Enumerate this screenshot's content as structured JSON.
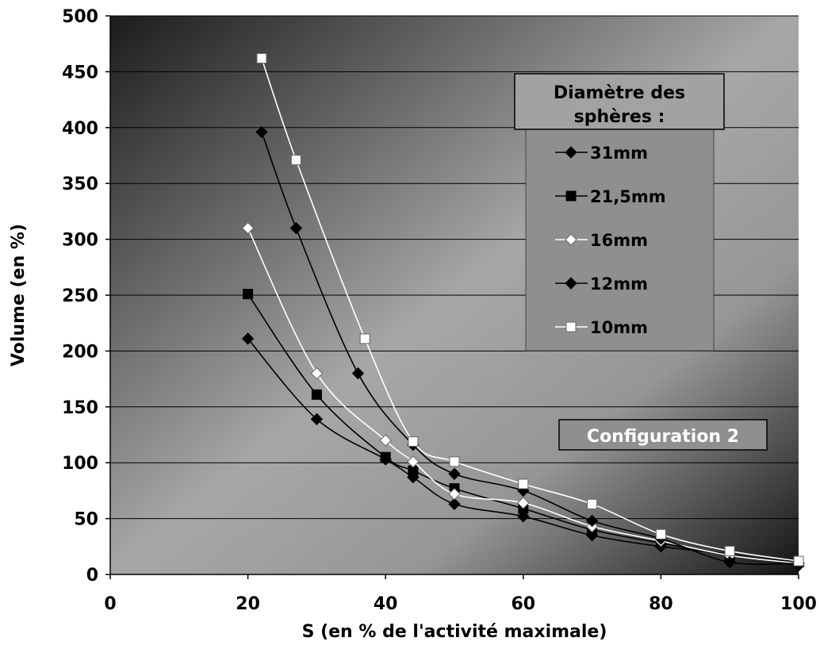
{
  "chart_data": {
    "type": "line",
    "xlabel": "S (en % de l'activité maximale)",
    "ylabel": "Volume (en %)",
    "xlim": [
      0,
      100
    ],
    "ylim": [
      0,
      500
    ],
    "x_ticks": [
      "0",
      "20",
      "40",
      "60",
      "80",
      "100"
    ],
    "y_ticks": [
      "0",
      "50",
      "100",
      "150",
      "200",
      "250",
      "300",
      "350",
      "400",
      "450",
      "500"
    ],
    "grid": "horizontal",
    "legend_position": "top-right",
    "legend_title": "Diamètre des sphères :",
    "annotation": "Configuration 2",
    "series": [
      {
        "name": "31mm",
        "marker": "diamond",
        "color": "#000000",
        "points": [
          [
            20,
            211
          ],
          [
            30,
            139
          ],
          [
            40,
            103
          ],
          [
            44,
            87
          ],
          [
            50,
            63
          ],
          [
            60,
            52
          ],
          [
            70,
            35
          ],
          [
            80,
            25
          ],
          [
            90,
            18
          ],
          [
            100,
            8
          ]
        ]
      },
      {
        "name": "21,5mm",
        "marker": "square",
        "color": "#000000",
        "points": [
          [
            20,
            251
          ],
          [
            30,
            161
          ],
          [
            40,
            105
          ],
          [
            44,
            93
          ],
          [
            50,
            77
          ],
          [
            60,
            59
          ],
          [
            70,
            40
          ],
          [
            80,
            28
          ],
          [
            90,
            17
          ],
          [
            100,
            11
          ]
        ]
      },
      {
        "name": "16mm",
        "marker": "diamond",
        "color": "#ffffff",
        "points": [
          [
            20,
            310
          ],
          [
            30,
            180
          ],
          [
            40,
            120
          ],
          [
            44,
            101
          ],
          [
            50,
            72
          ],
          [
            60,
            64
          ],
          [
            70,
            43
          ],
          [
            80,
            30
          ],
          [
            90,
            17
          ],
          [
            100,
            10
          ]
        ]
      },
      {
        "name": "12mm",
        "marker": "diamond",
        "color": "#000000",
        "points": [
          [
            22,
            396
          ],
          [
            27,
            310
          ],
          [
            36,
            180
          ],
          [
            44,
            116
          ],
          [
            50,
            90
          ],
          [
            60,
            75
          ],
          [
            70,
            48
          ],
          [
            80,
            32
          ],
          [
            90,
            11
          ],
          [
            100,
            10
          ]
        ]
      },
      {
        "name": "10mm",
        "marker": "square",
        "color": "#ffffff",
        "points": [
          [
            22,
            462
          ],
          [
            27,
            371
          ],
          [
            37,
            211
          ],
          [
            44,
            119
          ],
          [
            50,
            101
          ],
          [
            60,
            81
          ],
          [
            70,
            63
          ],
          [
            80,
            36
          ],
          [
            90,
            21
          ],
          [
            100,
            12
          ]
        ]
      }
    ]
  }
}
